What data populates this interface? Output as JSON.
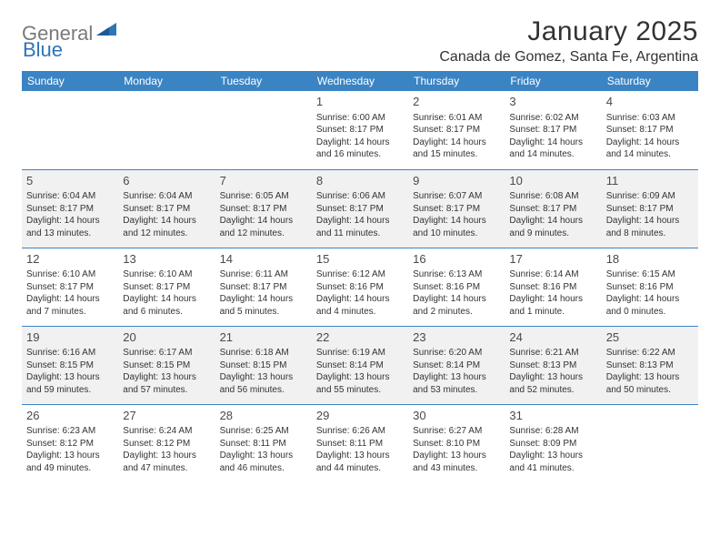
{
  "logo": {
    "text1": "General",
    "text2": "Blue"
  },
  "title": "January 2025",
  "location": "Canada de Gomez, Santa Fe, Argentina",
  "header_bg": "#3b84c4",
  "row_divider": "#3b84c4",
  "alt_row_bg": "#f1f1f1",
  "weekdays": [
    "Sunday",
    "Monday",
    "Tuesday",
    "Wednesday",
    "Thursday",
    "Friday",
    "Saturday"
  ],
  "weeks": [
    [
      null,
      null,
      null,
      {
        "d": "1",
        "sr": "Sunrise: 6:00 AM",
        "ss": "Sunset: 8:17 PM",
        "dl1": "Daylight: 14 hours",
        "dl2": "and 16 minutes."
      },
      {
        "d": "2",
        "sr": "Sunrise: 6:01 AM",
        "ss": "Sunset: 8:17 PM",
        "dl1": "Daylight: 14 hours",
        "dl2": "and 15 minutes."
      },
      {
        "d": "3",
        "sr": "Sunrise: 6:02 AM",
        "ss": "Sunset: 8:17 PM",
        "dl1": "Daylight: 14 hours",
        "dl2": "and 14 minutes."
      },
      {
        "d": "4",
        "sr": "Sunrise: 6:03 AM",
        "ss": "Sunset: 8:17 PM",
        "dl1": "Daylight: 14 hours",
        "dl2": "and 14 minutes."
      }
    ],
    [
      {
        "d": "5",
        "sr": "Sunrise: 6:04 AM",
        "ss": "Sunset: 8:17 PM",
        "dl1": "Daylight: 14 hours",
        "dl2": "and 13 minutes."
      },
      {
        "d": "6",
        "sr": "Sunrise: 6:04 AM",
        "ss": "Sunset: 8:17 PM",
        "dl1": "Daylight: 14 hours",
        "dl2": "and 12 minutes."
      },
      {
        "d": "7",
        "sr": "Sunrise: 6:05 AM",
        "ss": "Sunset: 8:17 PM",
        "dl1": "Daylight: 14 hours",
        "dl2": "and 12 minutes."
      },
      {
        "d": "8",
        "sr": "Sunrise: 6:06 AM",
        "ss": "Sunset: 8:17 PM",
        "dl1": "Daylight: 14 hours",
        "dl2": "and 11 minutes."
      },
      {
        "d": "9",
        "sr": "Sunrise: 6:07 AM",
        "ss": "Sunset: 8:17 PM",
        "dl1": "Daylight: 14 hours",
        "dl2": "and 10 minutes."
      },
      {
        "d": "10",
        "sr": "Sunrise: 6:08 AM",
        "ss": "Sunset: 8:17 PM",
        "dl1": "Daylight: 14 hours",
        "dl2": "and 9 minutes."
      },
      {
        "d": "11",
        "sr": "Sunrise: 6:09 AM",
        "ss": "Sunset: 8:17 PM",
        "dl1": "Daylight: 14 hours",
        "dl2": "and 8 minutes."
      }
    ],
    [
      {
        "d": "12",
        "sr": "Sunrise: 6:10 AM",
        "ss": "Sunset: 8:17 PM",
        "dl1": "Daylight: 14 hours",
        "dl2": "and 7 minutes."
      },
      {
        "d": "13",
        "sr": "Sunrise: 6:10 AM",
        "ss": "Sunset: 8:17 PM",
        "dl1": "Daylight: 14 hours",
        "dl2": "and 6 minutes."
      },
      {
        "d": "14",
        "sr": "Sunrise: 6:11 AM",
        "ss": "Sunset: 8:17 PM",
        "dl1": "Daylight: 14 hours",
        "dl2": "and 5 minutes."
      },
      {
        "d": "15",
        "sr": "Sunrise: 6:12 AM",
        "ss": "Sunset: 8:16 PM",
        "dl1": "Daylight: 14 hours",
        "dl2": "and 4 minutes."
      },
      {
        "d": "16",
        "sr": "Sunrise: 6:13 AM",
        "ss": "Sunset: 8:16 PM",
        "dl1": "Daylight: 14 hours",
        "dl2": "and 2 minutes."
      },
      {
        "d": "17",
        "sr": "Sunrise: 6:14 AM",
        "ss": "Sunset: 8:16 PM",
        "dl1": "Daylight: 14 hours",
        "dl2": "and 1 minute."
      },
      {
        "d": "18",
        "sr": "Sunrise: 6:15 AM",
        "ss": "Sunset: 8:16 PM",
        "dl1": "Daylight: 14 hours",
        "dl2": "and 0 minutes."
      }
    ],
    [
      {
        "d": "19",
        "sr": "Sunrise: 6:16 AM",
        "ss": "Sunset: 8:15 PM",
        "dl1": "Daylight: 13 hours",
        "dl2": "and 59 minutes."
      },
      {
        "d": "20",
        "sr": "Sunrise: 6:17 AM",
        "ss": "Sunset: 8:15 PM",
        "dl1": "Daylight: 13 hours",
        "dl2": "and 57 minutes."
      },
      {
        "d": "21",
        "sr": "Sunrise: 6:18 AM",
        "ss": "Sunset: 8:15 PM",
        "dl1": "Daylight: 13 hours",
        "dl2": "and 56 minutes."
      },
      {
        "d": "22",
        "sr": "Sunrise: 6:19 AM",
        "ss": "Sunset: 8:14 PM",
        "dl1": "Daylight: 13 hours",
        "dl2": "and 55 minutes."
      },
      {
        "d": "23",
        "sr": "Sunrise: 6:20 AM",
        "ss": "Sunset: 8:14 PM",
        "dl1": "Daylight: 13 hours",
        "dl2": "and 53 minutes."
      },
      {
        "d": "24",
        "sr": "Sunrise: 6:21 AM",
        "ss": "Sunset: 8:13 PM",
        "dl1": "Daylight: 13 hours",
        "dl2": "and 52 minutes."
      },
      {
        "d": "25",
        "sr": "Sunrise: 6:22 AM",
        "ss": "Sunset: 8:13 PM",
        "dl1": "Daylight: 13 hours",
        "dl2": "and 50 minutes."
      }
    ],
    [
      {
        "d": "26",
        "sr": "Sunrise: 6:23 AM",
        "ss": "Sunset: 8:12 PM",
        "dl1": "Daylight: 13 hours",
        "dl2": "and 49 minutes."
      },
      {
        "d": "27",
        "sr": "Sunrise: 6:24 AM",
        "ss": "Sunset: 8:12 PM",
        "dl1": "Daylight: 13 hours",
        "dl2": "and 47 minutes."
      },
      {
        "d": "28",
        "sr": "Sunrise: 6:25 AM",
        "ss": "Sunset: 8:11 PM",
        "dl1": "Daylight: 13 hours",
        "dl2": "and 46 minutes."
      },
      {
        "d": "29",
        "sr": "Sunrise: 6:26 AM",
        "ss": "Sunset: 8:11 PM",
        "dl1": "Daylight: 13 hours",
        "dl2": "and 44 minutes."
      },
      {
        "d": "30",
        "sr": "Sunrise: 6:27 AM",
        "ss": "Sunset: 8:10 PM",
        "dl1": "Daylight: 13 hours",
        "dl2": "and 43 minutes."
      },
      {
        "d": "31",
        "sr": "Sunrise: 6:28 AM",
        "ss": "Sunset: 8:09 PM",
        "dl1": "Daylight: 13 hours",
        "dl2": "and 41 minutes."
      },
      null
    ]
  ]
}
